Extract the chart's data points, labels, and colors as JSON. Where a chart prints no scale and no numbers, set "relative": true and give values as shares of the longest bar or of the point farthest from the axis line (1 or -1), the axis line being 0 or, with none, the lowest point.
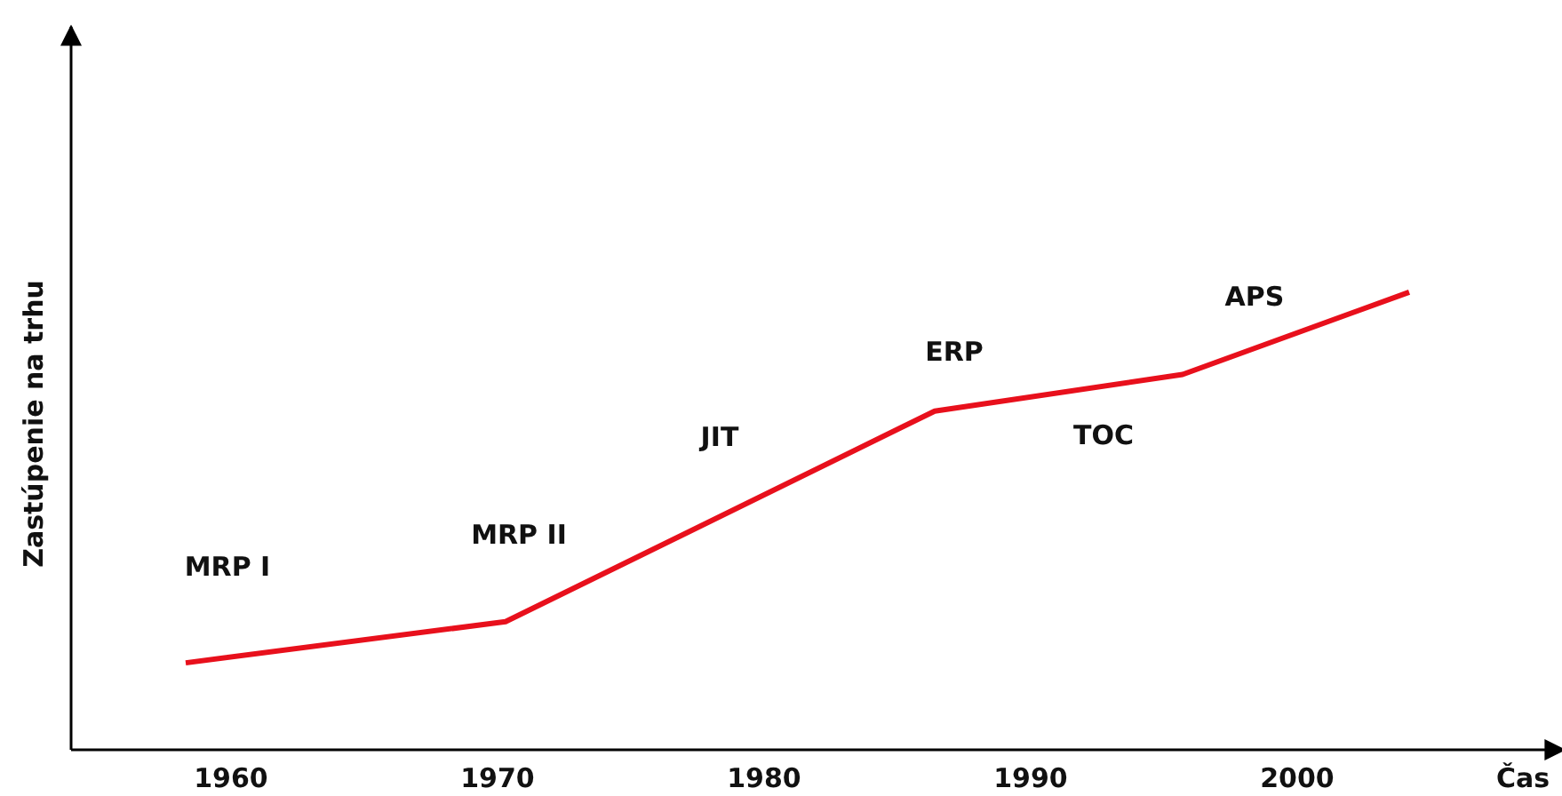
{
  "chart_data": {
    "type": "line",
    "relative": true,
    "xlabel": "Čas",
    "ylabel": "Zastúpenie na trhu",
    "xlim": [
      1954,
      2010
    ],
    "xticks": [
      1960,
      1970,
      1980,
      1990,
      2000
    ],
    "grid": false,
    "line_style": "solid",
    "series": [
      {
        "color": "#e8101c",
        "x": [
          1958.3,
          1970.3,
          1986.4,
          1995.7,
          2004.2
        ],
        "values": [
          0.19,
          0.28,
          0.74,
          0.82,
          1
        ]
      }
    ],
    "annotations": [
      "MRP I",
      "MRP II",
      "JIT",
      "ERP",
      "TOC",
      "APS"
    ]
  }
}
